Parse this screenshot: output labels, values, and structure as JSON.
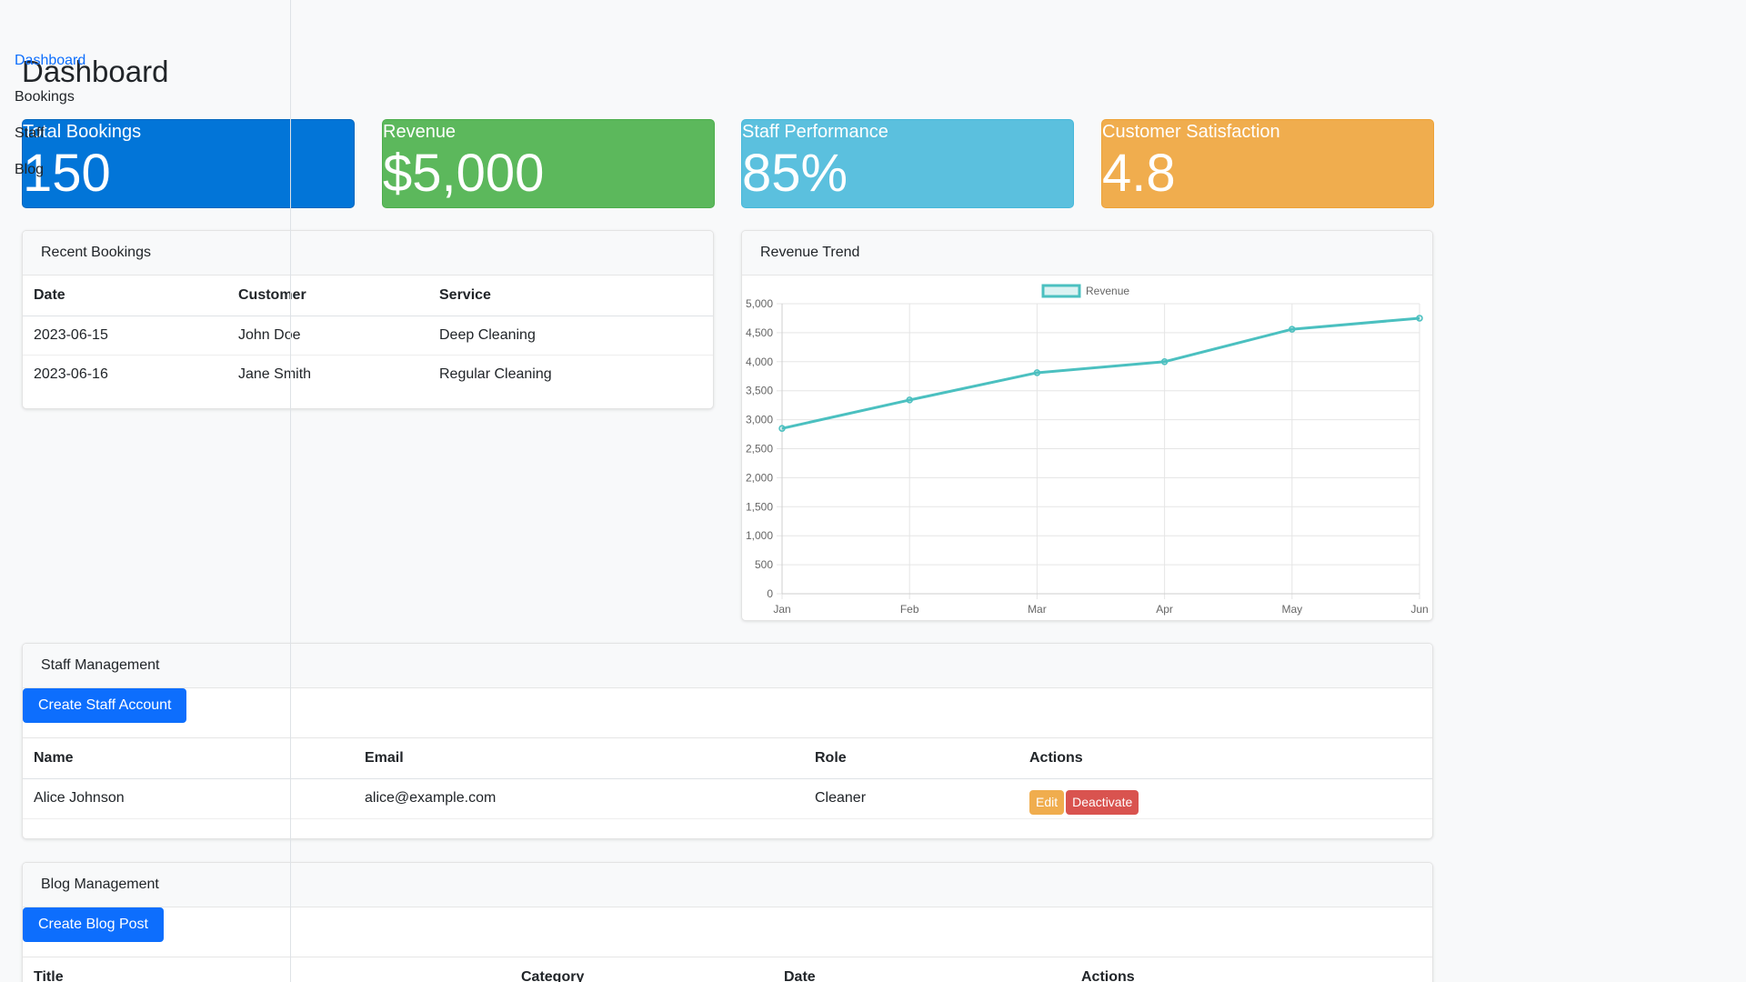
{
  "nav": {
    "items": [
      {
        "label": "Dashboard",
        "active": true
      },
      {
        "label": "Bookings"
      },
      {
        "label": "Staff"
      },
      {
        "label": "Blog"
      }
    ]
  },
  "page_title": "Dashboard",
  "stats": [
    {
      "label": "Total Bookings",
      "value": "150",
      "color": "#0275d8"
    },
    {
      "label": "Revenue",
      "value": "$5,000",
      "color": "#5cb85c"
    },
    {
      "label": "Staff Performance",
      "value": "85%",
      "color": "#5bc0de"
    },
    {
      "label": "Customer Satisfaction",
      "value": "4.8",
      "color": "#f0ad4e"
    }
  ],
  "recent_bookings": {
    "title": "Recent Bookings",
    "columns": [
      "Date",
      "Customer",
      "Service"
    ],
    "rows": [
      [
        "2023-06-15",
        "John Doe",
        "Deep Cleaning"
      ],
      [
        "2023-06-16",
        "Jane Smith",
        "Regular Cleaning"
      ]
    ]
  },
  "revenue_trend": {
    "title": "Revenue Trend"
  },
  "chart_data": {
    "type": "line",
    "categories": [
      "Jan",
      "Feb",
      "Mar",
      "Apr",
      "May",
      "Jun"
    ],
    "series": [
      {
        "name": "Revenue",
        "values": [
          2850,
          3340,
          3810,
          4000,
          4560,
          4750
        ],
        "color": "#4bc0c0"
      }
    ],
    "ylim": [
      0,
      5000
    ],
    "yticks": [
      "0",
      "500",
      "1,000",
      "1,500",
      "2,000",
      "2,500",
      "3,000",
      "3,500",
      "4,000",
      "4,500",
      "5,000"
    ],
    "grid": true,
    "legend": "top"
  },
  "staff_management": {
    "title": "Staff Management",
    "create_label": "Create Staff Account",
    "columns": [
      "Name",
      "Email",
      "Role",
      "Actions"
    ],
    "rows": [
      {
        "name": "Alice Johnson",
        "email": "alice@example.com",
        "role": "Cleaner",
        "edit": "Edit",
        "deactivate": "Deactivate"
      }
    ]
  },
  "blog_management": {
    "title": "Blog Management",
    "create_label": "Create Blog Post",
    "columns": [
      "Title",
      "Category",
      "Date",
      "Actions"
    ]
  }
}
